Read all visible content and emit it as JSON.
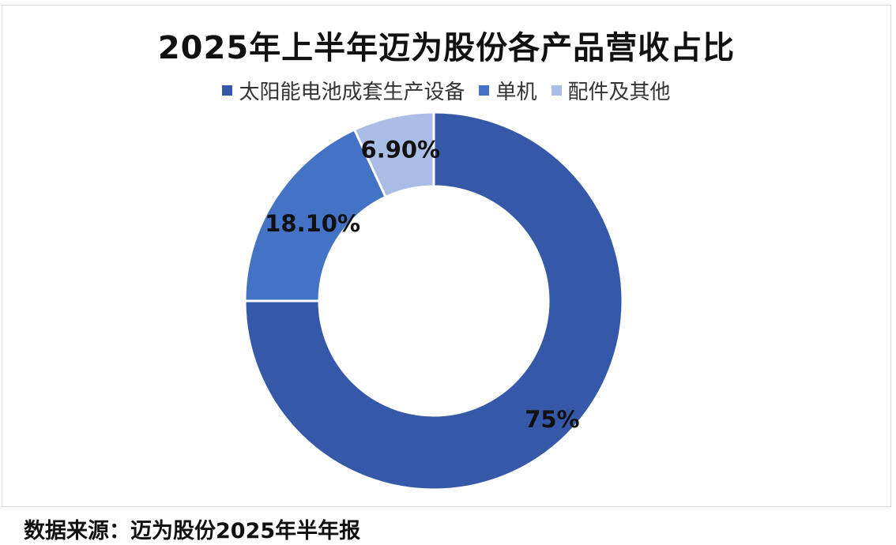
{
  "chart_data": {
    "type": "pie",
    "title": "2025年上半年迈为股份各产品营收占比",
    "categories": [
      "太阳能电池成套生产设备",
      "单机",
      "配件及其他"
    ],
    "values": [
      75,
      18.1,
      6.9
    ],
    "data_labels": [
      "75%",
      "18.10%",
      "6.90%"
    ],
    "colors": [
      "#3559a8",
      "#4472c4",
      "#a9bde6"
    ],
    "legend_position": "top",
    "donut": true
  },
  "source": "数据来源：迈为股份2025年半年报"
}
